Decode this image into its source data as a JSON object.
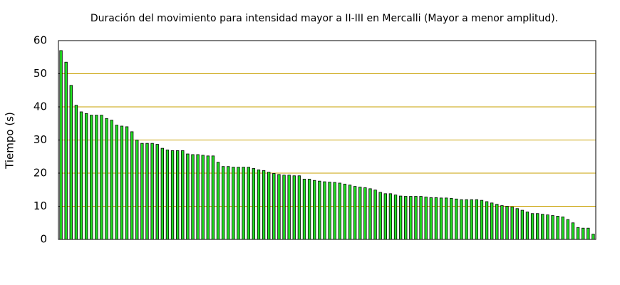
{
  "chart_data": {
    "type": "bar",
    "title": "Duración del movimiento para intensidad mayor a II-III en Mercalli (Mayor a menor amplitud).",
    "y_label": "Tiempo (s)",
    "categories": [
      null,
      null,
      null,
      null,
      null,
      null,
      null,
      null,
      null,
      null,
      null,
      null,
      null,
      null,
      null,
      null,
      null,
      null,
      null,
      null,
      null,
      null,
      null,
      null,
      null,
      null,
      null,
      null,
      null,
      null,
      null,
      null,
      null,
      null,
      null,
      null,
      null,
      null,
      null,
      null,
      null,
      null,
      null,
      null,
      null,
      null,
      null,
      null,
      null,
      null,
      null,
      null,
      null,
      null,
      null,
      null,
      null,
      null,
      null,
      null,
      null,
      null,
      null,
      null,
      null,
      null,
      null,
      null,
      null,
      null,
      null,
      null,
      null,
      null,
      null,
      null,
      null,
      null,
      null,
      null,
      null,
      null,
      null,
      null,
      null,
      null,
      null,
      null,
      null,
      null,
      null,
      null,
      null,
      null,
      null,
      null,
      null,
      null,
      null,
      null,
      null,
      null,
      null,
      null,
      null,
      null
    ],
    "values": [
      57,
      53.5,
      46.5,
      40.5,
      38.5,
      38,
      37.5,
      37.5,
      37.5,
      36.5,
      36,
      34.5,
      34.2,
      34,
      32.5,
      30,
      29,
      29,
      29,
      28.7,
      27.5,
      27,
      26.8,
      26.8,
      26.8,
      25.8,
      25.6,
      25.6,
      25.4,
      25.2,
      25.2,
      23.3,
      22,
      22,
      21.8,
      21.8,
      21.8,
      21.8,
      21.4,
      21,
      20.8,
      20.3,
      19.9,
      19.6,
      19.4,
      19.4,
      19.2,
      19.2,
      18.2,
      18.2,
      17.8,
      17.6,
      17.4,
      17.3,
      17.2,
      17,
      16.7,
      16.4,
      16,
      15.8,
      15.6,
      15.3,
      14.9,
      14.2,
      13.8,
      13.8,
      13.4,
      13.1,
      13,
      13,
      13,
      13,
      12.8,
      12.6,
      12.6,
      12.5,
      12.5,
      12.4,
      12.2,
      12,
      12,
      12,
      12,
      11.8,
      11.4,
      11,
      10.6,
      10.2,
      10,
      9.8,
      9.3,
      8.8,
      8.3,
      7.8,
      7.8,
      7.6,
      7.4,
      7.2,
      7,
      6.8,
      6,
      5,
      3.6,
      3.4,
      3.4,
      1.6
    ],
    "color": "#22dd22",
    "grid_color": "#c8a000",
    "ylim": [
      0,
      60
    ],
    "yticks": [
      0,
      10,
      20,
      30,
      40,
      50,
      60
    ],
    "grid": true
  }
}
